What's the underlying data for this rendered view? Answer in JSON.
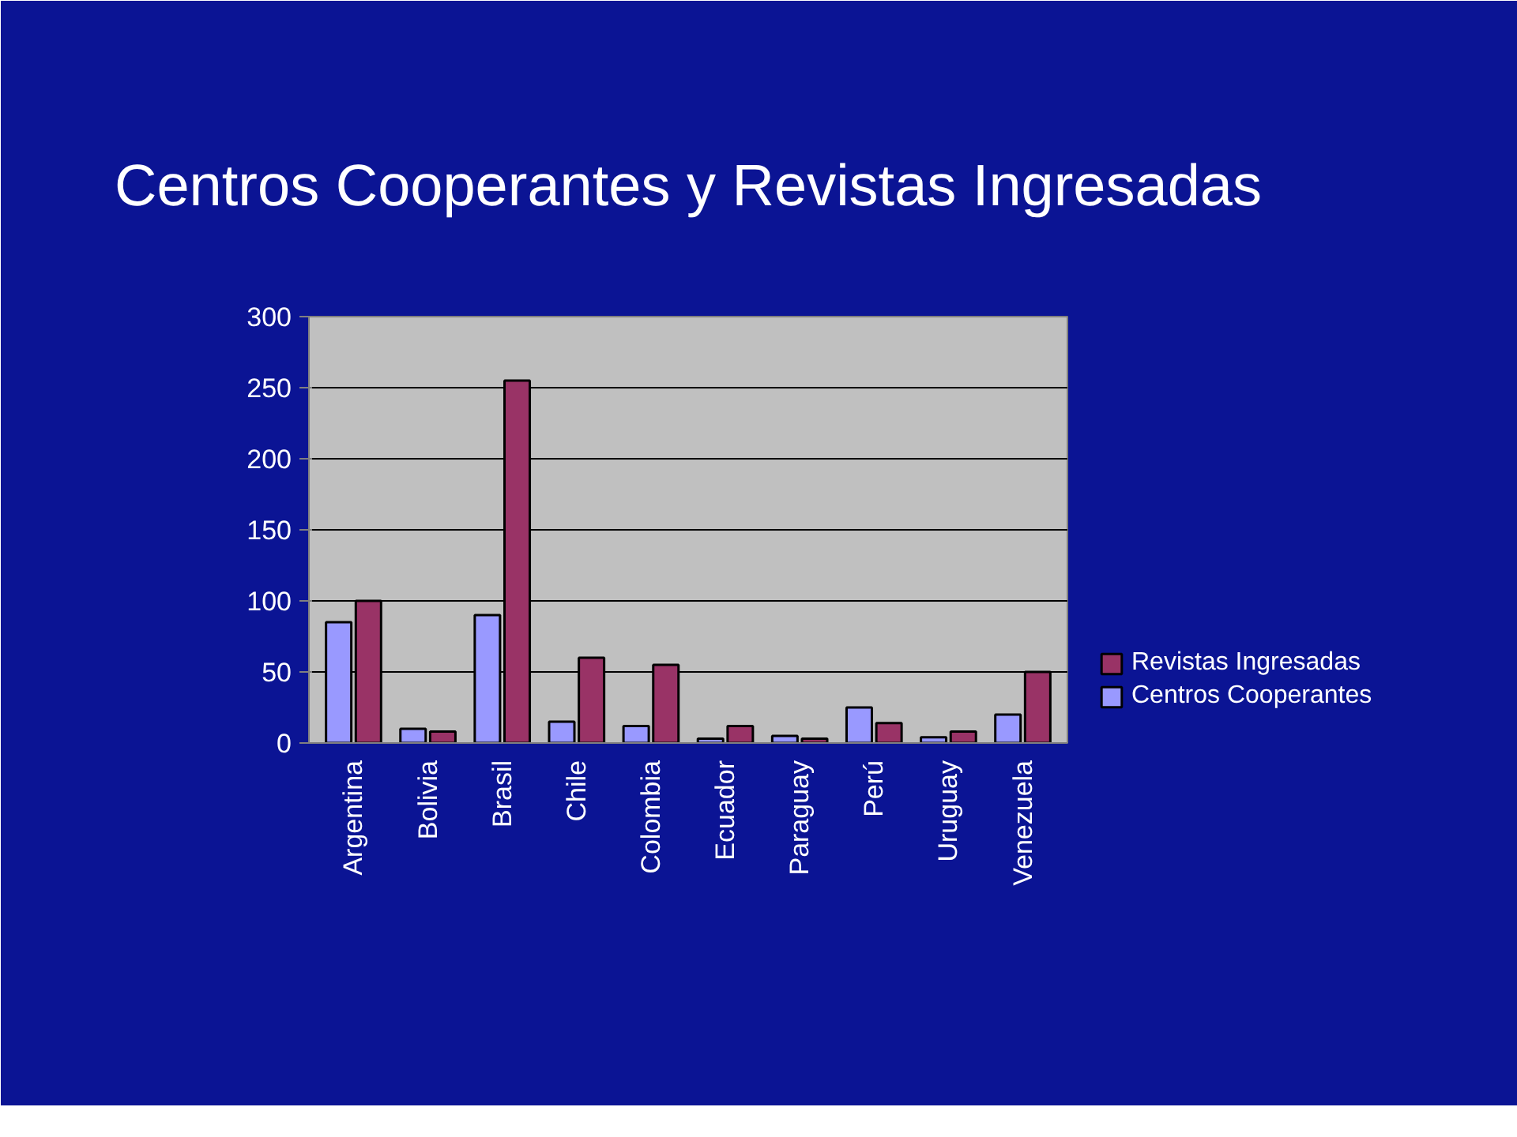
{
  "chart_data": {
    "type": "bar",
    "title": "Centros Cooperantes y Revistas Ingresadas",
    "categories": [
      "Argentina",
      "Bolivia",
      "Brasil",
      "Chile",
      "Colombia",
      "Ecuador",
      "Paraguay",
      "Perú",
      "Uruguay",
      "Venezuela"
    ],
    "series": [
      {
        "name": "Centros Cooperantes",
        "color": "#9999ff",
        "values": [
          85,
          10,
          90,
          15,
          12,
          3,
          5,
          25,
          4,
          20
        ]
      },
      {
        "name": "Revistas Ingresadas",
        "color": "#993366",
        "values": [
          100,
          8,
          255,
          60,
          55,
          12,
          3,
          14,
          8,
          50
        ]
      }
    ],
    "ylim": [
      0,
      300
    ],
    "yticks": [
      0,
      50,
      100,
      150,
      200,
      250,
      300
    ],
    "grid": "y",
    "legend": "bottom right"
  }
}
